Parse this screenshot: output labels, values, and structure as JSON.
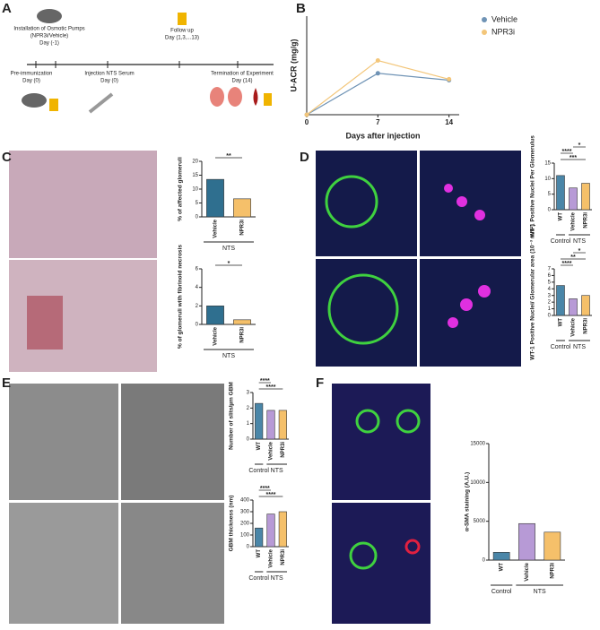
{
  "panel_labels": [
    "A",
    "B",
    "C",
    "D",
    "E",
    "F"
  ],
  "timeline": {
    "pumps": [
      "Installation of Osmotic Pumps",
      "(NPR3i/Vehicle)",
      "Day (-1)"
    ],
    "follow": [
      "Follow up",
      "Day (1,3,...13)"
    ],
    "preimm": [
      "Pre-immunization",
      "Day (0)"
    ],
    "nts": [
      "Injection NTS Serum",
      "Day (0)"
    ],
    "term": [
      "Termination of Experiment",
      "Day (14)"
    ]
  },
  "chart_data": [
    {
      "type": "line",
      "x": [
        0,
        7,
        14
      ],
      "xlim": [
        0,
        15
      ],
      "xticks": [
        0,
        7,
        14
      ],
      "xlabel": "Days after injection",
      "ylabel": "U-ACR (mg/g)",
      "ylim": [
        0,
        500
      ],
      "series": [
        {
          "name": "Vehicle",
          "color": "#6f93b5",
          "values": [
            0,
            210,
            175
          ]
        },
        {
          "name": "NPR3i",
          "color": "#f3c67a",
          "values": [
            0,
            275,
            180
          ]
        }
      ]
    },
    {
      "type": "bar",
      "ylabel": "% of affected glomeruli",
      "categories": [
        "Vehicle",
        "NPR3i"
      ],
      "values": [
        13.5,
        6.5
      ],
      "colors": [
        "#2f6f8f",
        "#f5c06a"
      ],
      "ylim": [
        0,
        20
      ],
      "yticks": [
        0,
        5,
        10,
        15,
        20
      ],
      "significance": [
        "**"
      ],
      "group_labels": [
        "NTS"
      ]
    },
    {
      "type": "bar",
      "ylabel": "% of glomeruli with fibrinoid necrosis",
      "categories": [
        "Vehicle",
        "NPR3i"
      ],
      "values": [
        2,
        0.5
      ],
      "colors": [
        "#2f6f8f",
        "#f5c06a"
      ],
      "ylim": [
        0,
        6
      ],
      "yticks": [
        0,
        2,
        4,
        6
      ],
      "significance": [
        "*"
      ],
      "group_labels": [
        "NTS"
      ]
    },
    {
      "type": "bar",
      "ylabel": "WT-1 Positive Nuclei Per Glomerulus",
      "categories": [
        "WT",
        "Vehicle",
        "NPR3i"
      ],
      "values": [
        11,
        7,
        8.5
      ],
      "colors": [
        "#4a86a8",
        "#b79ad6",
        "#f5c06a"
      ],
      "ylim": [
        0,
        15
      ],
      "yticks": [
        0,
        5,
        10,
        15
      ],
      "significance": [
        "***",
        "****",
        "*"
      ],
      "group_labels": [
        "Control",
        "NTS"
      ]
    },
    {
      "type": "bar",
      "ylabel": "WT-1 Positive Nuclei/ Glomerular area (10⁻³ mm²)",
      "categories": [
        "WT",
        "Vehicle",
        "NPR3i"
      ],
      "values": [
        4.5,
        2.5,
        3
      ],
      "colors": [
        "#4a86a8",
        "#b79ad6",
        "#f5c06a"
      ],
      "ylim": [
        0,
        7
      ],
      "yticks": [
        0,
        1,
        2,
        3,
        4,
        5,
        6,
        7
      ],
      "significance": [
        "****",
        "**",
        "*"
      ],
      "group_labels": [
        "Control",
        "NTS"
      ]
    },
    {
      "type": "bar",
      "ylabel": "Number of slits/µm GBM",
      "categories": [
        "WT",
        "Vehicle",
        "NPR3i"
      ],
      "values": [
        2.3,
        1.85,
        1.85
      ],
      "colors": [
        "#4a86a8",
        "#b79ad6",
        "#f5c06a"
      ],
      "ylim": [
        0,
        3
      ],
      "yticks": [
        0,
        1,
        2,
        3
      ],
      "significance": [
        "****",
        "****"
      ],
      "group_labels": [
        "Control",
        "NTS"
      ]
    },
    {
      "type": "bar",
      "ylabel": "GBM thickness (nm)",
      "categories": [
        "WT",
        "Vehicle",
        "NPR3i"
      ],
      "values": [
        160,
        280,
        300
      ],
      "colors": [
        "#4a86a8",
        "#b79ad6",
        "#f5c06a"
      ],
      "ylim": [
        0,
        400
      ],
      "yticks": [
        0,
        100,
        200,
        300,
        400
      ],
      "significance": [
        "****",
        "****"
      ],
      "group_labels": [
        "Control",
        "NTS"
      ]
    },
    {
      "type": "bar",
      "ylabel": "α-SMA staining (A.U.)",
      "categories": [
        "WT",
        "Vehicle",
        "NPR3i"
      ],
      "values": [
        1000,
        4700,
        3600
      ],
      "colors": [
        "#4a86a8",
        "#b79ad6",
        "#f5c06a"
      ],
      "ylim": [
        0,
        15000
      ],
      "yticks": [
        0,
        5000,
        10000,
        15000
      ],
      "group_labels": [
        "Control",
        "NTS"
      ]
    }
  ]
}
